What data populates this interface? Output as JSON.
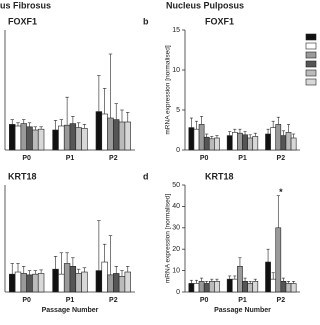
{
  "header": {
    "left_title": "us Fibrosus",
    "right_title": "Nucleus Pulposus"
  },
  "chart_data": [
    {
      "type": "bar",
      "label": null,
      "title": "FOXF1",
      "categories": [
        "P0",
        "P1",
        "P2"
      ],
      "ylim": [
        0,
        15
      ],
      "series": [
        {
          "color": "#111111",
          "values": [
            3.2,
            2.5,
            4.8
          ],
          "errors": [
            0.6,
            1.2,
            4.5
          ]
        },
        {
          "color": "#ffffff",
          "values": [
            3.0,
            3.0,
            4.5
          ],
          "errors": [
            0.4,
            0.8,
            3.2
          ]
        },
        {
          "color": "#9a9a9a",
          "values": [
            3.3,
            3.1,
            4.0
          ],
          "errors": [
            0.5,
            3.5,
            8.0
          ]
        },
        {
          "color": "#555555",
          "values": [
            2.9,
            3.3,
            3.8
          ],
          "errors": [
            0.5,
            0.9,
            2.0
          ]
        },
        {
          "color": "#bbbbbb",
          "values": [
            2.5,
            2.8,
            3.5
          ],
          "errors": [
            0.4,
            0.6,
            1.5
          ]
        },
        {
          "color": "#d8d8d8",
          "values": [
            2.6,
            2.7,
            3.5
          ],
          "errors": [
            0.3,
            0.5,
            1.2
          ]
        }
      ]
    },
    {
      "type": "bar",
      "label": "b",
      "title": "FOXF1",
      "categories": [
        "P0",
        "P1",
        "P2"
      ],
      "ylim": [
        0,
        15
      ],
      "yticks": [
        0,
        5,
        10,
        15
      ],
      "ylabel": "mRNA expression [normalised]",
      "legend": "right",
      "series": [
        {
          "color": "#111111",
          "values": [
            2.8,
            1.8,
            2.0
          ],
          "errors": [
            1.2,
            0.5,
            0.6
          ]
        },
        {
          "color": "#ffffff",
          "values": [
            2.6,
            2.2,
            2.8
          ],
          "errors": [
            1.0,
            0.4,
            0.8
          ]
        },
        {
          "color": "#9a9a9a",
          "values": [
            3.2,
            2.1,
            3.2
          ],
          "errors": [
            1.0,
            0.5,
            0.9
          ]
        },
        {
          "color": "#555555",
          "values": [
            1.6,
            1.9,
            1.8
          ],
          "errors": [
            0.4,
            0.4,
            0.6
          ]
        },
        {
          "color": "#bbbbbb",
          "values": [
            1.4,
            1.5,
            2.2
          ],
          "errors": [
            0.3,
            0.4,
            1.0
          ]
        },
        {
          "color": "#d8d8d8",
          "values": [
            1.5,
            1.7,
            1.5
          ],
          "errors": [
            0.3,
            0.4,
            0.5
          ]
        }
      ]
    },
    {
      "type": "bar",
      "label": null,
      "title": "KRT18",
      "categories": [
        "P0",
        "P1",
        "P2"
      ],
      "ylim": [
        0,
        15
      ],
      "xlabel": "Passage Number",
      "series": [
        {
          "color": "#111111",
          "values": [
            2.5,
            3.2,
            3.0
          ],
          "errors": [
            1.5,
            1.8,
            7.0
          ]
        },
        {
          "color": "#ffffff",
          "values": [
            2.8,
            2.5,
            4.2
          ],
          "errors": [
            1.2,
            3.0,
            2.5
          ]
        },
        {
          "color": "#9a9a9a",
          "values": [
            2.6,
            4.0,
            2.4
          ],
          "errors": [
            1.0,
            1.5,
            5.5
          ]
        },
        {
          "color": "#555555",
          "values": [
            2.4,
            3.6,
            2.6
          ],
          "errors": [
            0.6,
            1.2,
            1.0
          ]
        },
        {
          "color": "#bbbbbb",
          "values": [
            2.5,
            2.6,
            2.2
          ],
          "errors": [
            0.5,
            0.6,
            0.8
          ]
        },
        {
          "color": "#d8d8d8",
          "values": [
            2.6,
            2.8,
            2.8
          ],
          "errors": [
            0.5,
            0.6,
            0.8
          ]
        }
      ]
    },
    {
      "type": "bar",
      "label": "d",
      "title": "KRT18",
      "categories": [
        "P0",
        "P1",
        "P2"
      ],
      "ylim": [
        0,
        50
      ],
      "yticks": [
        0,
        10,
        20,
        30,
        40,
        50
      ],
      "ylabel": "mRNA expression [normalised]",
      "xlabel": "Passage Number",
      "annotation": "*",
      "series": [
        {
          "color": "#111111",
          "values": [
            4,
            6,
            14
          ],
          "errors": [
            1.5,
            1.5,
            6
          ]
        },
        {
          "color": "#ffffff",
          "values": [
            4,
            6,
            6
          ],
          "errors": [
            1.5,
            1.5,
            3
          ]
        },
        {
          "color": "#9a9a9a",
          "values": [
            5,
            12,
            30
          ],
          "errors": [
            1.5,
            4,
            15
          ]
        },
        {
          "color": "#555555",
          "values": [
            4,
            5,
            5
          ],
          "errors": [
            1,
            1.5,
            1.5
          ]
        },
        {
          "color": "#bbbbbb",
          "values": [
            5,
            4,
            4
          ],
          "errors": [
            1,
            1,
            1
          ]
        },
        {
          "color": "#d8d8d8",
          "values": [
            5,
            5,
            4
          ],
          "errors": [
            1,
            1,
            1
          ]
        }
      ]
    }
  ]
}
